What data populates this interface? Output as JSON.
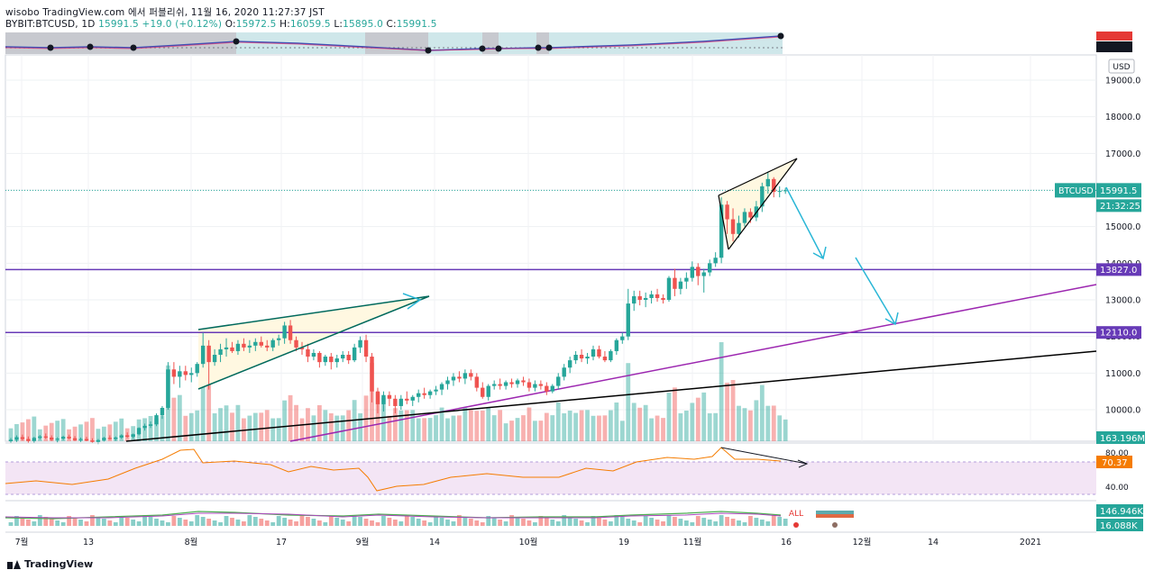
{
  "header": {
    "attribution": "wisobo TradingView.com 에서 퍼블리쉬, 11월 16, 2020 11:27:37 JST",
    "symbol": "BYBIT:BTCUSD, 1D",
    "last": "15991.5",
    "change": "+19.0 (+0.12%)",
    "ohlc_o_label": "O:",
    "ohlc_o": "15972.5",
    "ohlc_h_label": "H:",
    "ohlc_h": "16059.5",
    "ohlc_l_label": "L:",
    "ohlc_l": "15895.0",
    "ohlc_c_label": "C:",
    "ohlc_c": "15991.5"
  },
  "footer": {
    "brand": "TradingView"
  },
  "colors": {
    "up": "#26a69a",
    "down": "#ef5350",
    "hline": "#673ab7",
    "trend_purple": "#9c27b0",
    "trend_black": "#000000",
    "arrow": "#29b6d6",
    "rsi": "#f57c00",
    "rsi_band": "#f3e5f5"
  },
  "chart_data": {
    "type": "candlestick",
    "currency": "USD",
    "price_axis": {
      "ticks": [
        "19000.0",
        "18000.0",
        "17000.0",
        "16000.0",
        "15000.0",
        "14000.0",
        "13000.0",
        "12000.0",
        "11000.0",
        "10000.0"
      ],
      "range": [
        9100,
        19900
      ]
    },
    "time_axis": {
      "labels": [
        "7월",
        "13",
        "8월",
        "17",
        "9월",
        "14",
        "10월",
        "19",
        "11월",
        "16",
        "12월",
        "14",
        "2021"
      ]
    },
    "price_labels": {
      "symbol": "BTCUSD",
      "last": "15991.5",
      "countdown": "21:32:25",
      "level_high": "13827.0",
      "level_low": "12110.0",
      "volume": "163.196M"
    },
    "horizontal_levels": [
      13827.0,
      12110.0
    ],
    "candles": [
      {
        "t": 1,
        "o": 9140,
        "h": 9230,
        "l": 9080,
        "c": 9180
      },
      {
        "t": 2,
        "o": 9180,
        "h": 9300,
        "l": 9120,
        "c": 9250
      },
      {
        "t": 3,
        "o": 9250,
        "h": 9320,
        "l": 9160,
        "c": 9200
      },
      {
        "t": 4,
        "o": 9200,
        "h": 9270,
        "l": 9100,
        "c": 9150
      },
      {
        "t": 5,
        "o": 9150,
        "h": 9260,
        "l": 9090,
        "c": 9230
      },
      {
        "t": 6,
        "o": 9230,
        "h": 9310,
        "l": 9180,
        "c": 9270
      },
      {
        "t": 7,
        "o": 9270,
        "h": 9350,
        "l": 9200,
        "c": 9240
      },
      {
        "t": 8,
        "o": 9240,
        "h": 9300,
        "l": 9150,
        "c": 9180
      },
      {
        "t": 9,
        "o": 9180,
        "h": 9250,
        "l": 9110,
        "c": 9210
      },
      {
        "t": 10,
        "o": 9210,
        "h": 9290,
        "l": 9170,
        "c": 9260
      },
      {
        "t": 11,
        "o": 9260,
        "h": 9320,
        "l": 9190,
        "c": 9220
      },
      {
        "t": 12,
        "o": 9220,
        "h": 9280,
        "l": 9150,
        "c": 9170
      },
      {
        "t": 13,
        "o": 9170,
        "h": 9240,
        "l": 9120,
        "c": 9200
      },
      {
        "t": 14,
        "o": 9200,
        "h": 9260,
        "l": 9140,
        "c": 9160
      },
      {
        "t": 15,
        "o": 9160,
        "h": 9220,
        "l": 9080,
        "c": 9120
      },
      {
        "t": 16,
        "o": 9120,
        "h": 9200,
        "l": 9060,
        "c": 9170
      },
      {
        "t": 17,
        "o": 9170,
        "h": 9260,
        "l": 9130,
        "c": 9230
      },
      {
        "t": 18,
        "o": 9230,
        "h": 9300,
        "l": 9180,
        "c": 9200
      },
      {
        "t": 19,
        "o": 9200,
        "h": 9270,
        "l": 9150,
        "c": 9240
      },
      {
        "t": 20,
        "o": 9240,
        "h": 9330,
        "l": 9200,
        "c": 9300
      },
      {
        "t": 21,
        "o": 9300,
        "h": 9380,
        "l": 9230,
        "c": 9260
      },
      {
        "t": 22,
        "o": 9260,
        "h": 9350,
        "l": 9210,
        "c": 9330
      },
      {
        "t": 23,
        "o": 9330,
        "h": 9520,
        "l": 9300,
        "c": 9500
      },
      {
        "t": 24,
        "o": 9500,
        "h": 9620,
        "l": 9430,
        "c": 9560
      },
      {
        "t": 25,
        "o": 9560,
        "h": 9680,
        "l": 9500,
        "c": 9600
      },
      {
        "t": 26,
        "o": 9600,
        "h": 9900,
        "l": 9550,
        "c": 9850
      },
      {
        "t": 27,
        "o": 9850,
        "h": 10100,
        "l": 9750,
        "c": 10050
      },
      {
        "t": 28,
        "o": 10050,
        "h": 11300,
        "l": 10000,
        "c": 11100
      },
      {
        "t": 29,
        "o": 11100,
        "h": 11300,
        "l": 10700,
        "c": 10900
      },
      {
        "t": 30,
        "o": 10900,
        "h": 11200,
        "l": 10600,
        "c": 11050
      },
      {
        "t": 31,
        "o": 11050,
        "h": 11200,
        "l": 10800,
        "c": 10950
      },
      {
        "t": 32,
        "o": 10950,
        "h": 11150,
        "l": 10750,
        "c": 11000
      },
      {
        "t": 33,
        "o": 11000,
        "h": 11300,
        "l": 10900,
        "c": 11250
      },
      {
        "t": 34,
        "o": 11250,
        "h": 12100,
        "l": 11150,
        "c": 11750
      },
      {
        "t": 35,
        "o": 11750,
        "h": 11900,
        "l": 10550,
        "c": 11300
      },
      {
        "t": 36,
        "o": 11300,
        "h": 11650,
        "l": 11200,
        "c": 11500
      },
      {
        "t": 37,
        "o": 11500,
        "h": 11800,
        "l": 11300,
        "c": 11650
      },
      {
        "t": 38,
        "o": 11650,
        "h": 11950,
        "l": 11450,
        "c": 11700
      },
      {
        "t": 39,
        "o": 11700,
        "h": 11850,
        "l": 11550,
        "c": 11600
      },
      {
        "t": 40,
        "o": 11600,
        "h": 11900,
        "l": 11500,
        "c": 11800
      },
      {
        "t": 41,
        "o": 11800,
        "h": 11950,
        "l": 11600,
        "c": 11700
      },
      {
        "t": 42,
        "o": 11700,
        "h": 11900,
        "l": 11550,
        "c": 11750
      },
      {
        "t": 43,
        "o": 11750,
        "h": 11950,
        "l": 11600,
        "c": 11850
      },
      {
        "t": 44,
        "o": 11850,
        "h": 12000,
        "l": 11700,
        "c": 11750
      },
      {
        "t": 45,
        "o": 11750,
        "h": 11900,
        "l": 11600,
        "c": 11700
      },
      {
        "t": 46,
        "o": 11700,
        "h": 11950,
        "l": 11600,
        "c": 11900
      },
      {
        "t": 47,
        "o": 11900,
        "h": 12050,
        "l": 11750,
        "c": 11950
      },
      {
        "t": 48,
        "o": 11950,
        "h": 12400,
        "l": 11800,
        "c": 12300
      },
      {
        "t": 49,
        "o": 12300,
        "h": 12450,
        "l": 11800,
        "c": 11900
      },
      {
        "t": 50,
        "o": 11900,
        "h": 12000,
        "l": 11600,
        "c": 11700
      },
      {
        "t": 51,
        "o": 11700,
        "h": 11850,
        "l": 11500,
        "c": 11650
      },
      {
        "t": 52,
        "o": 11650,
        "h": 11800,
        "l": 11300,
        "c": 11450
      },
      {
        "t": 53,
        "o": 11450,
        "h": 11650,
        "l": 11350,
        "c": 11550
      },
      {
        "t": 54,
        "o": 11550,
        "h": 11600,
        "l": 11150,
        "c": 11300
      },
      {
        "t": 55,
        "o": 11300,
        "h": 11500,
        "l": 11200,
        "c": 11450
      },
      {
        "t": 56,
        "o": 11450,
        "h": 11550,
        "l": 11100,
        "c": 11300
      },
      {
        "t": 57,
        "o": 11300,
        "h": 11500,
        "l": 11150,
        "c": 11400
      },
      {
        "t": 58,
        "o": 11400,
        "h": 11600,
        "l": 11300,
        "c": 11500
      },
      {
        "t": 59,
        "o": 11500,
        "h": 11600,
        "l": 11250,
        "c": 11350
      },
      {
        "t": 60,
        "o": 11350,
        "h": 11800,
        "l": 11300,
        "c": 11700
      },
      {
        "t": 61,
        "o": 11700,
        "h": 12000,
        "l": 11550,
        "c": 11900
      },
      {
        "t": 62,
        "o": 11900,
        "h": 12050,
        "l": 11300,
        "c": 11450
      },
      {
        "t": 63,
        "o": 11450,
        "h": 11550,
        "l": 10200,
        "c": 10500
      },
      {
        "t": 64,
        "o": 10500,
        "h": 10600,
        "l": 9900,
        "c": 10150
      },
      {
        "t": 65,
        "o": 10150,
        "h": 10500,
        "l": 9950,
        "c": 10400
      },
      {
        "t": 66,
        "o": 10400,
        "h": 10500,
        "l": 10100,
        "c": 10300
      },
      {
        "t": 67,
        "o": 10300,
        "h": 10400,
        "l": 9900,
        "c": 10100
      },
      {
        "t": 68,
        "o": 10100,
        "h": 10400,
        "l": 10000,
        "c": 10300
      },
      {
        "t": 69,
        "o": 10300,
        "h": 10500,
        "l": 10150,
        "c": 10250
      },
      {
        "t": 70,
        "o": 10250,
        "h": 10400,
        "l": 10100,
        "c": 10350
      },
      {
        "t": 71,
        "o": 10350,
        "h": 10550,
        "l": 10200,
        "c": 10450
      },
      {
        "t": 72,
        "o": 10450,
        "h": 10600,
        "l": 10300,
        "c": 10400
      },
      {
        "t": 73,
        "o": 10400,
        "h": 10550,
        "l": 10300,
        "c": 10500
      },
      {
        "t": 74,
        "o": 10500,
        "h": 10650,
        "l": 10400,
        "c": 10550
      },
      {
        "t": 75,
        "o": 10550,
        "h": 10750,
        "l": 10400,
        "c": 10700
      },
      {
        "t": 76,
        "o": 10700,
        "h": 10900,
        "l": 10550,
        "c": 10800
      },
      {
        "t": 77,
        "o": 10800,
        "h": 11000,
        "l": 10650,
        "c": 10900
      },
      {
        "t": 78,
        "o": 10900,
        "h": 11050,
        "l": 10750,
        "c": 10850
      },
      {
        "t": 79,
        "o": 10850,
        "h": 11100,
        "l": 10700,
        "c": 11000
      },
      {
        "t": 80,
        "o": 11000,
        "h": 11100,
        "l": 10800,
        "c": 10900
      },
      {
        "t": 81,
        "o": 10900,
        "h": 11000,
        "l": 10500,
        "c": 10600
      },
      {
        "t": 82,
        "o": 10600,
        "h": 10750,
        "l": 10300,
        "c": 10350
      },
      {
        "t": 83,
        "o": 10350,
        "h": 10700,
        "l": 10250,
        "c": 10650
      },
      {
        "t": 84,
        "o": 10650,
        "h": 10800,
        "l": 10550,
        "c": 10700
      },
      {
        "t": 85,
        "o": 10700,
        "h": 10850,
        "l": 10550,
        "c": 10650
      },
      {
        "t": 86,
        "o": 10650,
        "h": 10800,
        "l": 10550,
        "c": 10750
      },
      {
        "t": 87,
        "o": 10750,
        "h": 10850,
        "l": 10600,
        "c": 10700
      },
      {
        "t": 88,
        "o": 10700,
        "h": 10850,
        "l": 10600,
        "c": 10800
      },
      {
        "t": 89,
        "o": 10800,
        "h": 10900,
        "l": 10650,
        "c": 10750
      },
      {
        "t": 90,
        "o": 10750,
        "h": 10850,
        "l": 10500,
        "c": 10600
      },
      {
        "t": 91,
        "o": 10600,
        "h": 10800,
        "l": 10500,
        "c": 10700
      },
      {
        "t": 92,
        "o": 10700,
        "h": 10800,
        "l": 10550,
        "c": 10650
      },
      {
        "t": 93,
        "o": 10650,
        "h": 10750,
        "l": 10400,
        "c": 10500
      },
      {
        "t": 94,
        "o": 10500,
        "h": 10700,
        "l": 10450,
        "c": 10650
      },
      {
        "t": 95,
        "o": 10650,
        "h": 11000,
        "l": 10550,
        "c": 10900
      },
      {
        "t": 96,
        "o": 10900,
        "h": 11250,
        "l": 10800,
        "c": 11150
      },
      {
        "t": 97,
        "o": 11150,
        "h": 11450,
        "l": 11000,
        "c": 11350
      },
      {
        "t": 98,
        "o": 11350,
        "h": 11600,
        "l": 11250,
        "c": 11500
      },
      {
        "t": 99,
        "o": 11500,
        "h": 11650,
        "l": 11300,
        "c": 11400
      },
      {
        "t": 100,
        "o": 11400,
        "h": 11550,
        "l": 11250,
        "c": 11450
      },
      {
        "t": 101,
        "o": 11450,
        "h": 11750,
        "l": 11350,
        "c": 11650
      },
      {
        "t": 102,
        "o": 11650,
        "h": 11750,
        "l": 11400,
        "c": 11450
      },
      {
        "t": 103,
        "o": 11450,
        "h": 11600,
        "l": 11300,
        "c": 11350
      },
      {
        "t": 104,
        "o": 11350,
        "h": 11650,
        "l": 11300,
        "c": 11600
      },
      {
        "t": 105,
        "o": 11600,
        "h": 11950,
        "l": 11500,
        "c": 11900
      },
      {
        "t": 106,
        "o": 11900,
        "h": 12100,
        "l": 11800,
        "c": 12000
      },
      {
        "t": 107,
        "o": 12000,
        "h": 13300,
        "l": 11900,
        "c": 12900
      },
      {
        "t": 108,
        "o": 12900,
        "h": 13250,
        "l": 12700,
        "c": 13100
      },
      {
        "t": 109,
        "o": 13100,
        "h": 13250,
        "l": 12850,
        "c": 13000
      },
      {
        "t": 110,
        "o": 13000,
        "h": 13200,
        "l": 12800,
        "c": 13050
      },
      {
        "t": 111,
        "o": 13050,
        "h": 13250,
        "l": 12900,
        "c": 13150
      },
      {
        "t": 112,
        "o": 13150,
        "h": 13300,
        "l": 12950,
        "c": 13050
      },
      {
        "t": 113,
        "o": 13050,
        "h": 13150,
        "l": 12900,
        "c": 13000
      },
      {
        "t": 114,
        "o": 13000,
        "h": 13650,
        "l": 12950,
        "c": 13600
      },
      {
        "t": 115,
        "o": 13600,
        "h": 13850,
        "l": 13100,
        "c": 13300
      },
      {
        "t": 116,
        "o": 13300,
        "h": 13600,
        "l": 13150,
        "c": 13500
      },
      {
        "t": 117,
        "o": 13500,
        "h": 13750,
        "l": 13300,
        "c": 13600
      },
      {
        "t": 118,
        "o": 13600,
        "h": 14050,
        "l": 13500,
        "c": 13900
      },
      {
        "t": 119,
        "o": 13900,
        "h": 14000,
        "l": 13400,
        "c": 13650
      },
      {
        "t": 120,
        "o": 13650,
        "h": 13850,
        "l": 13200,
        "c": 13750
      },
      {
        "t": 121,
        "o": 13750,
        "h": 14100,
        "l": 13650,
        "c": 14000
      },
      {
        "t": 122,
        "o": 14000,
        "h": 14300,
        "l": 13900,
        "c": 14150
      },
      {
        "t": 123,
        "o": 14150,
        "h": 15800,
        "l": 14000,
        "c": 15600
      },
      {
        "t": 124,
        "o": 15600,
        "h": 15700,
        "l": 14800,
        "c": 15200
      },
      {
        "t": 125,
        "o": 15200,
        "h": 15500,
        "l": 14600,
        "c": 14800
      },
      {
        "t": 126,
        "o": 14800,
        "h": 15300,
        "l": 14700,
        "c": 15100
      },
      {
        "t": 127,
        "o": 15100,
        "h": 15500,
        "l": 15000,
        "c": 15400
      },
      {
        "t": 128,
        "o": 15400,
        "h": 15500,
        "l": 15100,
        "c": 15250
      },
      {
        "t": 129,
        "o": 15250,
        "h": 15700,
        "l": 15150,
        "c": 15550
      },
      {
        "t": 130,
        "o": 15550,
        "h": 16200,
        "l": 15400,
        "c": 16100
      },
      {
        "t": 131,
        "o": 16100,
        "h": 16500,
        "l": 15900,
        "c": 16300
      },
      {
        "t": 132,
        "o": 16300,
        "h": 16350,
        "l": 15800,
        "c": 15950
      },
      {
        "t": 133,
        "o": 15950,
        "h": 16100,
        "l": 15800,
        "c": 15972.5
      },
      {
        "t": 134,
        "o": 15972.5,
        "h": 16059.5,
        "l": 15895.0,
        "c": 15991.5
      }
    ]
  }
}
